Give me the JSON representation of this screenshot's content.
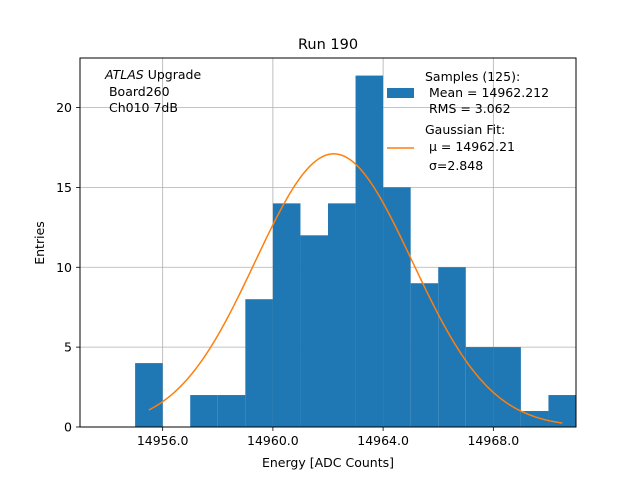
{
  "chart_data": {
    "type": "bar",
    "title": "Run 190",
    "xlabel": "Energy [ADC Counts]",
    "ylabel": "Entries",
    "xlim": [
      14953,
      14971
    ],
    "ylim": [
      0,
      23.1
    ],
    "xticks": [
      14956,
      14960,
      14964,
      14968
    ],
    "xtick_labels": [
      "14956.0",
      "14960.0",
      "14964.0",
      "14968.0"
    ],
    "yticks": [
      0,
      5,
      10,
      15,
      20
    ],
    "ytick_labels": [
      "0",
      "5",
      "10",
      "15",
      "20"
    ],
    "grid": true,
    "bin_width": 1,
    "bins": [
      {
        "x0": 14955,
        "count": 4
      },
      {
        "x0": 14956,
        "count": 0
      },
      {
        "x0": 14957,
        "count": 2
      },
      {
        "x0": 14958,
        "count": 2
      },
      {
        "x0": 14959,
        "count": 8
      },
      {
        "x0": 14960,
        "count": 14
      },
      {
        "x0": 14961,
        "count": 12
      },
      {
        "x0": 14962,
        "count": 14
      },
      {
        "x0": 14963,
        "count": 22
      },
      {
        "x0": 14964,
        "count": 15
      },
      {
        "x0": 14965,
        "count": 9
      },
      {
        "x0": 14966,
        "count": 10
      },
      {
        "x0": 14967,
        "count": 5
      },
      {
        "x0": 14968,
        "count": 5
      },
      {
        "x0": 14969,
        "count": 1
      },
      {
        "x0": 14970,
        "count": 2
      }
    ],
    "fit": {
      "mu": 14962.21,
      "sigma": 2.848,
      "amplitude": 17.1,
      "x_range": [
        14955.5,
        14970.5
      ]
    },
    "colors": {
      "histogram": "#1f77b4",
      "fit": "#ff7f0e",
      "grid": "#b0b0b0"
    },
    "annotation": {
      "experiment": "ATLAS",
      "label_suffix": " Upgrade",
      "board": " Board260",
      "channel": " Ch010 7dB"
    },
    "legend": {
      "position": "top-right",
      "samples_header": "Samples (125):",
      "samples_mean": " Mean = 14962.212",
      "samples_rms": " RMS = 3.062",
      "fit_header": "Gaussian Fit:",
      "fit_mu": " μ = 14962.21",
      "fit_sigma": " σ=2.848"
    }
  }
}
